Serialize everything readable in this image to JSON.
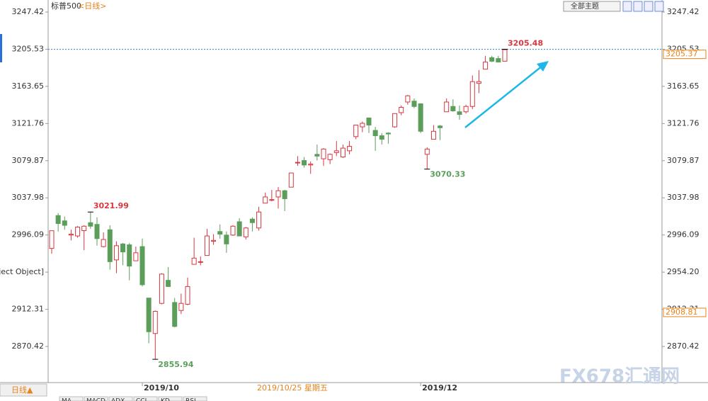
{
  "chart_data": {
    "type": "candlestick",
    "title": "标普500",
    "subtitle": "<日线>",
    "theme_button": "全部主题",
    "period_tab": "日线▲",
    "crosshair_date": "2019/10/25 星期五",
    "toolbar_tabs": [
      "MA",
      "MACD",
      "ADX",
      "CCI",
      "KD",
      "RSI"
    ],
    "watermark": "FX678汇通网",
    "up_color": "#d9363e",
    "down_color": "#5a9e5a",
    "last_price": 3205.37,
    "marker_price": 2908.81,
    "annotations": [
      3021.99,
      2855.94,
      3070.33,
      3205.48
    ],
    "ylim": [
      2829.7,
      3261.0
    ],
    "yticks": [
      3247.42,
      3205.53,
      3163.65,
      3121.76,
      3079.87,
      3037.98,
      2996.09,
      {
        "value": 2954.2,
        "label": "2954.20"
      },
      2912.31,
      2870.42
    ],
    "categories": [
      null,
      null,
      null,
      null,
      null,
      null,
      null,
      null,
      null,
      null,
      null,
      null,
      null,
      null,
      "2019/10",
      null,
      null,
      null,
      null,
      null,
      null,
      null,
      null,
      null,
      null,
      null,
      null,
      null,
      null,
      null,
      null,
      null,
      null,
      null,
      null,
      null,
      null,
      null,
      null,
      null,
      null,
      null,
      null,
      null,
      null,
      null,
      null,
      null,
      null,
      null,
      null,
      null,
      null,
      null,
      null,
      null,
      null,
      "2019/12",
      null,
      null,
      null,
      null,
      null,
      null,
      null,
      null,
      null,
      null,
      null,
      null,
      null
    ],
    "open": [
      2981,
      3018,
      3012,
      2996,
      2995,
      3001,
      3010,
      3008,
      2983,
      3002,
      2968,
      2986,
      2985,
      2967,
      2983,
      2925,
      2885,
      2919,
      2945,
      2920,
      2911,
      2918,
      2963,
      2966,
      2973,
      2989,
      3000,
      2996,
      2996,
      3011,
      2994,
      3014,
      3004,
      3032,
      3036,
      3039,
      3046,
      3050,
      3078,
      3080,
      3075,
      3087,
      3082,
      3081,
      3089,
      3084,
      3091,
      3107,
      3118,
      3128,
      3114,
      3108,
      3111,
      3118,
      3134,
      3146,
      3147,
      3144,
      3087,
      3104,
      3119,
      3135,
      3141,
      3135,
      3135,
      3141,
      3167,
      3183,
      3196,
      3195,
      3192
    ],
    "high": [
      3000.9,
      3020.7,
      3017,
      3002,
      3006,
      3007,
      3021.99,
      3016,
      2999,
      3007,
      2989,
      2987,
      2987,
      2983,
      2992,
      2925,
      2911,
      2953,
      2960,
      2925,
      2930,
      2948,
      2993,
      2972,
      3003,
      2997,
      3008,
      3000,
      3007,
      3015,
      3005,
      3016,
      3028,
      3044,
      3047,
      3050,
      3047,
      3066,
      3085,
      3084,
      3079,
      3098,
      3094,
      3088,
      3102,
      3098,
      3102,
      3120,
      3124,
      3128,
      3118,
      3111,
      3112,
      3133,
      3142,
      3154,
      3150,
      3144,
      3095,
      3120,
      3120,
      3150,
      3149,
      3142,
      3143,
      3176,
      3182,
      3198,
      3198,
      3198,
      3205.48
    ],
    "low": [
      2975,
      3000,
      3002,
      2990,
      2993,
      2979,
      3003,
      2984,
      2982,
      2957,
      2953,
      2962,
      2945,
      2967,
      2938,
      2874,
      2855.94,
      2918,
      2938,
      2892,
      2907,
      2917,
      2963,
      2962,
      2973,
      2985,
      2992,
      2976,
      2995,
      2995,
      2991,
      3000,
      3001,
      3032,
      3034,
      3026,
      3023,
      3050,
      3074,
      3072,
      3065,
      3080,
      3074,
      3076,
      3085,
      3083,
      3087,
      3104,
      3112,
      3111,
      3091,
      3098,
      3099,
      3117,
      3131,
      3143,
      3139,
      3111,
      3070.33,
      3104,
      3103,
      3135,
      3135,
      3126,
      3133,
      3138,
      3156,
      3183,
      3191,
      3191,
      3192
    ],
    "close": [
      3000.9,
      3009,
      3007,
      2997,
      3005,
      3006,
      3006,
      2992,
      2991,
      2966,
      2984,
      2977,
      2961,
      2976,
      2940,
      2887,
      2910,
      2952,
      2938,
      2893,
      2919,
      2938,
      2970,
      2966,
      2995,
      2990,
      2997,
      2986,
      3006,
      2995,
      3004,
      3010,
      3022,
      3039,
      3036,
      3046,
      3037,
      3066,
      3078,
      3075,
      3076,
      3085,
      3093,
      3087,
      3091,
      3094,
      3096,
      3120,
      3122,
      3120,
      3108,
      3104,
      3110,
      3133,
      3140,
      3153,
      3141,
      3113,
      3093,
      3113,
      3117,
      3146,
      3136,
      3132,
      3141,
      3169,
      3169,
      3191,
      3192,
      3191,
      3205
    ]
  }
}
